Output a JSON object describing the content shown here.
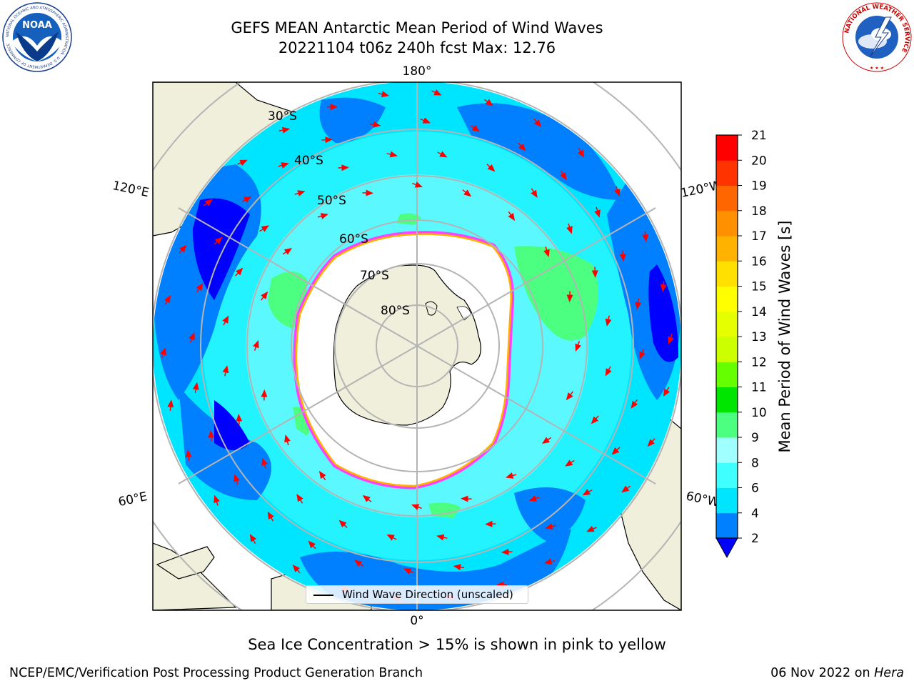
{
  "title": {
    "line1": "GEFS MEAN Antarctic Mean Period of Wind Waves",
    "line2": "20221104 t06z 240h fcst   Max: 12.76"
  },
  "map": {
    "projection": "south-polar-stereographic",
    "lat_labels": [
      "30°S",
      "40°S",
      "50°S",
      "60°S",
      "70°S",
      "80°S"
    ],
    "lon_labels": {
      "top": "180°",
      "bottom": "0°",
      "left_upper": "120°E",
      "left_lower": "60°E",
      "right_upper": "120°W",
      "right_lower": "60°W"
    },
    "colors": {
      "land": "#efefdc",
      "grid": "#b4b4b4",
      "ice_interior": "#ffffff",
      "sea_ice_edge": "#ff40ff",
      "arrow": "#ff0000"
    }
  },
  "colorbar": {
    "label": "Mean Period of Wind Waves [s]",
    "ticks": [
      2,
      4,
      6,
      8,
      9,
      10,
      11,
      12,
      13,
      14,
      15,
      16,
      17,
      18,
      19,
      20,
      21
    ],
    "colors": [
      "#0080ff",
      "#00e5ff",
      "#40ffff",
      "#a0ffff",
      "#4dff80",
      "#00e600",
      "#66ff00",
      "#ccff00",
      "#e6ff00",
      "#ffff00",
      "#ffe000",
      "#ffb300",
      "#ff9000",
      "#ff6600",
      "#ff3300",
      "#ff0000"
    ],
    "under_color": "#0000ff",
    "extend": "min"
  },
  "legend": {
    "label": "Wind Wave Direction (unscaled)"
  },
  "caption": "Sea Ice Concentration > 15% is shown in pink to yellow",
  "footer": {
    "left": "NCEP/EMC/Verification Post Processing Product Generation Branch",
    "right_date": "06 Nov 2022 on",
    "right_host": "Hera"
  },
  "logos": {
    "noaa": {
      "text": "NOAA",
      "ring_text": "NATIONAL OCEANIC AND ATMOSPHERIC ADMINISTRATION · U.S. DEPARTMENT OF COMMERCE"
    },
    "nws": {
      "ring_text": "NATIONAL WEATHER SERVICE"
    }
  }
}
